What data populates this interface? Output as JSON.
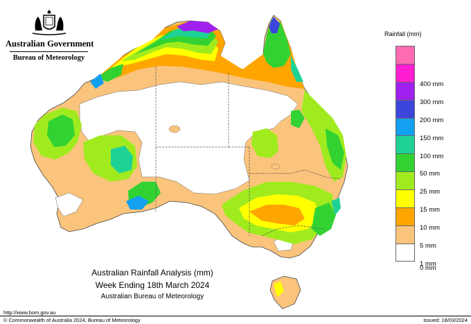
{
  "header": {
    "government": "Australian Government",
    "agency": "Bureau of Meteorology"
  },
  "legend": {
    "title": "Rainfall (mm)",
    "bands": [
      {
        "color": "#ff6ab4",
        "label": ""
      },
      {
        "color": "#ff1ed2",
        "label": "400 mm"
      },
      {
        "color": "#a020f0",
        "label": "300 mm"
      },
      {
        "color": "#3c46dc",
        "label": "200 mm"
      },
      {
        "color": "#14a0f0",
        "label": "150 mm"
      },
      {
        "color": "#1ed296",
        "label": "100 mm"
      },
      {
        "color": "#32d232",
        "label": "50 mm"
      },
      {
        "color": "#a0eb1e",
        "label": "25 mm"
      },
      {
        "color": "#ffff00",
        "label": "15 mm"
      },
      {
        "color": "#ffa500",
        "label": "10 mm"
      },
      {
        "color": "#fbc47c",
        "label": "5 mm"
      },
      {
        "color": "#ffffff",
        "label": "1 mm"
      }
    ],
    "bottom_label": "0 mm"
  },
  "titles": {
    "line1": "Australian Rainfall Analysis (mm)",
    "line2": "Week Ending 18th March 2024",
    "line3": "Australian Bureau of Meteorology"
  },
  "footer": {
    "url": "http://www.bom.gov.au",
    "copyright": "© Commonwealth of Australia 2024, Bureau of Meteorology",
    "issued": "Issued: 18/03/2024"
  }
}
